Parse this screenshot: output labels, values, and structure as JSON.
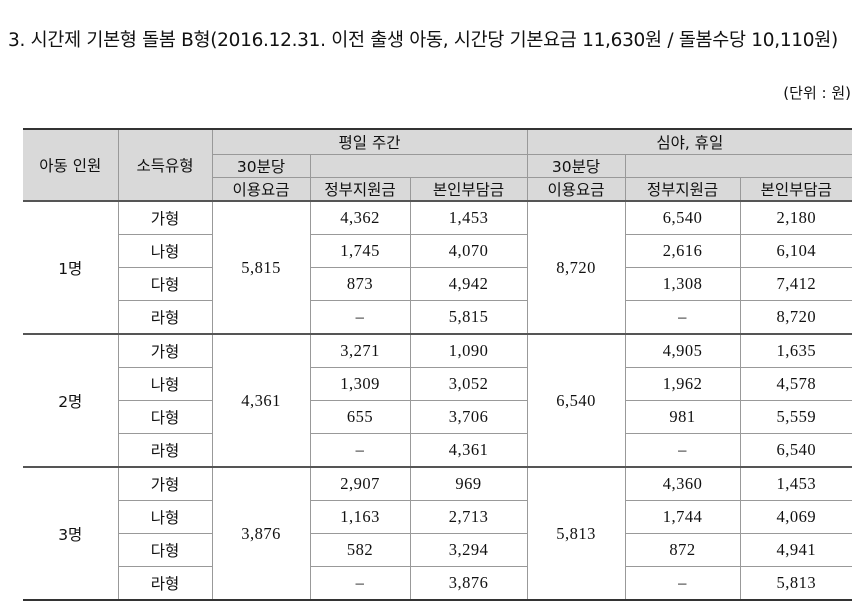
{
  "title": "3. 시간제 기본형 돌봄 B형(2016.12.31. 이전 출생 아동, 시간당 기본요금 11,630원 / 돌봄수당 10,110원)",
  "unit": "(단위 : 원)",
  "table": {
    "headers": {
      "children": "아동 인원",
      "income_type": "소득유형",
      "weekday": {
        "label": "평일 주간",
        "rate_line1": "30분당",
        "rate_line2": "이용요금",
        "gov": "정부지원금",
        "self": "본인부담금"
      },
      "night": {
        "label": "심야, 휴일",
        "rate_line1": "30분당",
        "rate_line2": "이용요금",
        "gov": "정부지원금",
        "self": "본인부담금"
      }
    },
    "groups": [
      {
        "label": "1명",
        "weekday_rate": "5,815",
        "night_rate": "8,720",
        "rows": [
          [
            "가형",
            "4,362",
            "1,453",
            "6,540",
            "2,180"
          ],
          [
            "나형",
            "1,745",
            "4,070",
            "2,616",
            "6,104"
          ],
          [
            "다형",
            "873",
            "4,942",
            "1,308",
            "7,412"
          ],
          [
            "라형",
            "–",
            "5,815",
            "–",
            "8,720"
          ]
        ]
      },
      {
        "label": "2명",
        "weekday_rate": "4,361",
        "night_rate": "6,540",
        "rows": [
          [
            "가형",
            "3,271",
            "1,090",
            "4,905",
            "1,635"
          ],
          [
            "나형",
            "1,309",
            "3,052",
            "1,962",
            "4,578"
          ],
          [
            "다형",
            "655",
            "3,706",
            "981",
            "5,559"
          ],
          [
            "라형",
            "–",
            "4,361",
            "–",
            "6,540"
          ]
        ]
      },
      {
        "label": "3명",
        "weekday_rate": "3,876",
        "night_rate": "5,813",
        "rows": [
          [
            "가형",
            "2,907",
            "969",
            "4,360",
            "1,453"
          ],
          [
            "나형",
            "1,163",
            "2,713",
            "1,744",
            "4,069"
          ],
          [
            "다형",
            "582",
            "3,294",
            "872",
            "4,941"
          ],
          [
            "라형",
            "–",
            "3,876",
            "–",
            "5,813"
          ]
        ]
      }
    ]
  }
}
